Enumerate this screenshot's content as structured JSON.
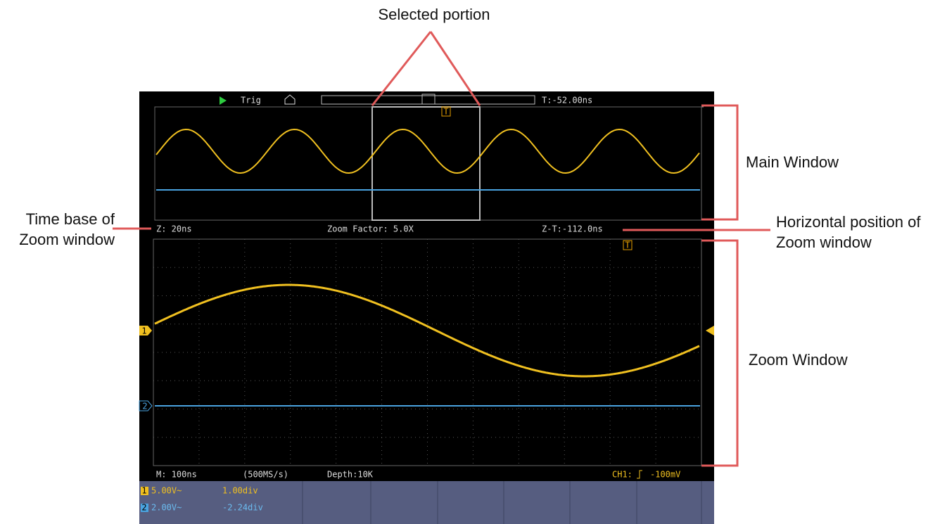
{
  "annotations": {
    "selected": "Selected portion",
    "main_window": "Main Window",
    "time_base": [
      "Time base of",
      "Zoom window"
    ],
    "horizontal_position": [
      "Horizontal position of",
      "Zoom window"
    ],
    "zoom_window": "Zoom Window"
  },
  "top_bar": {
    "trigger": "Trig",
    "trigger_time": "T:-52.00ns",
    "trigger_marker": "T"
  },
  "zoom_bar": {
    "time_base": "Z: 20ns",
    "zoom_factor": "Zoom Factor: 5.0X",
    "position": "Z-T:-112.0ns"
  },
  "status_bar": {
    "main_time_base": "M: 100ns",
    "sample_rate": "(500MS/s)",
    "depth": "Depth:10K",
    "channel": "CH1:",
    "trigger_level": "-100mV"
  },
  "channels": [
    {
      "number": "1",
      "scale": "5.00V~",
      "offset": "1.00div"
    },
    {
      "number": "2",
      "scale": "2.00V~",
      "offset": "-2.24div"
    }
  ]
}
